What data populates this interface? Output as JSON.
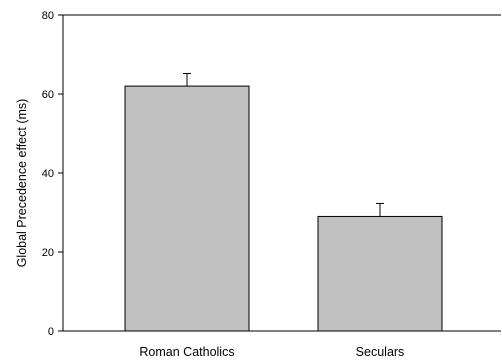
{
  "chart_data": {
    "type": "bar",
    "title": "",
    "xlabel": "",
    "ylabel": "Global Precedence effect (ms)",
    "categories": [
      "Roman Catholics",
      "Seculars"
    ],
    "values": [
      62,
      29
    ],
    "error_bars": [
      3.2,
      3.3
    ],
    "ylim": [
      0,
      80
    ],
    "yticks": [
      0,
      20,
      40,
      60,
      80
    ],
    "grid": false,
    "legend": "none",
    "bar_color": "#c0c0c0",
    "edge_color": "#000000"
  }
}
